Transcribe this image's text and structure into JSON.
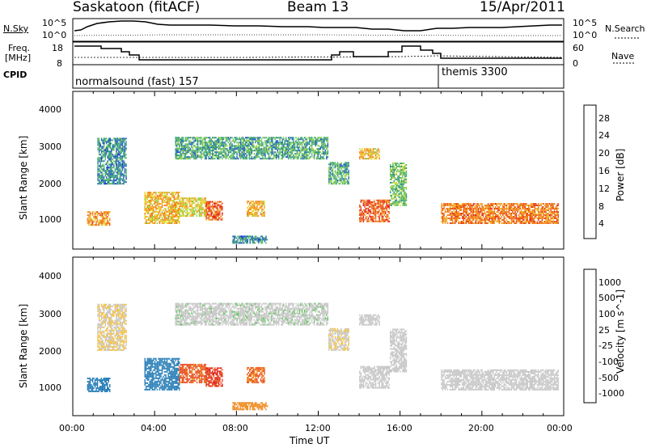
{
  "header": {
    "station": "Saskatoon (fitACF)",
    "beam": "Beam 13",
    "date": "15/Apr/2011"
  },
  "noise_panel": {
    "left_label": "N.Sky",
    "right_label": "N.Search",
    "left_ticks": [
      "10^5",
      "10^0"
    ],
    "right_ticks": [
      "10^5",
      "10^0"
    ]
  },
  "freq_panel": {
    "left_label_1": "Freq.",
    "left_label_2": "[MHz]",
    "left_ticks": [
      "18",
      "8"
    ],
    "right_label": "Nave",
    "right_ticks": [
      "60",
      "0"
    ]
  },
  "cpid": {
    "label": "CPID",
    "segments": [
      {
        "name": "normalsound (fast) 157",
        "start_hour": 0
      },
      {
        "name": "themis 3300",
        "start_hour": 18
      }
    ]
  },
  "x_axis": {
    "title": "Time UT",
    "ticks": [
      "00:00",
      "04:00",
      "08:00",
      "12:00",
      "16:00",
      "20:00",
      "00:00"
    ]
  },
  "power_panel": {
    "ylabel": "Slant Range [km]",
    "yticks": [
      "4000",
      "3000",
      "2000",
      "1000"
    ],
    "colorbar_label": "Power [dB]",
    "colorbar_ticks": [
      "28",
      "24",
      "20",
      "16",
      "12",
      "8",
      "4"
    ],
    "colorbar_colors": [
      "#0a10e0",
      "#1f55c8",
      "#2e8f86",
      "#54b868",
      "#8fd24a",
      "#e5d733",
      "#f5a623",
      "#f07a1a",
      "#e8441a",
      "#e01414"
    ]
  },
  "velocity_panel": {
    "ylabel": "Slant Range [km]",
    "yticks": [
      "4000",
      "3000",
      "2000",
      "1000"
    ],
    "colorbar_label": "Velocity [m s^-1]",
    "colorbar_ticks": [
      "1000",
      "500",
      "100",
      "25",
      "-25",
      "-100",
      "-500",
      "-1000"
    ],
    "colorbar_colors": [
      "#2048c8",
      "#2a7fb8",
      "#3a9a8a",
      "#5fc85a",
      "#c8c8c8",
      "#f5c040",
      "#f08a20",
      "#e85020",
      "#e01010"
    ]
  },
  "chart_data": {
    "type": "heatmap",
    "title": "Saskatoon (fitACF) Beam 13 15/Apr/2011",
    "xlabel": "Time UT",
    "ylabel": "Slant Range [km]",
    "xlim_hours": [
      0,
      24
    ],
    "ylim_km": [
      200,
      4600
    ],
    "power_clim_db": [
      0,
      32
    ],
    "velocity_clim_ms": [
      -1000,
      1000
    ],
    "echo_regions": [
      {
        "t0": 0.7,
        "t1": 1.8,
        "r0": 850,
        "r1": 1250,
        "power": 22,
        "velocity": 200
      },
      {
        "t0": 1.2,
        "t1": 2.6,
        "r0": 2000,
        "r1": 3300,
        "power": 8,
        "velocity": -25
      },
      {
        "t0": 3.5,
        "t1": 5.2,
        "r0": 900,
        "r1": 1800,
        "power": 20,
        "velocity": 250
      },
      {
        "t0": 5.2,
        "t1": 6.5,
        "r0": 1100,
        "r1": 1600,
        "power": 18,
        "velocity": -600
      },
      {
        "t0": 6.5,
        "t1": 7.3,
        "r0": 1000,
        "r1": 1500,
        "power": 26,
        "velocity": -900
      },
      {
        "t0": 8.5,
        "t1": 9.4,
        "r0": 1100,
        "r1": 1550,
        "power": 20,
        "velocity": -500
      },
      {
        "t0": 5.0,
        "t1": 12.5,
        "r0": 2700,
        "r1": 3300,
        "power": 10,
        "velocity": 10
      },
      {
        "t0": 12.5,
        "t1": 13.5,
        "r0": 2000,
        "r1": 2600,
        "power": 10,
        "velocity": -20
      },
      {
        "t0": 14.0,
        "t1": 15.0,
        "r0": 2700,
        "r1": 3000,
        "power": 20,
        "velocity": 0
      },
      {
        "t0": 14.0,
        "t1": 15.5,
        "r0": 950,
        "r1": 1550,
        "power": 26,
        "velocity": 0
      },
      {
        "t0": 15.5,
        "t1": 16.3,
        "r0": 1400,
        "r1": 2600,
        "power": 12,
        "velocity": 0
      },
      {
        "t0": 18.0,
        "t1": 23.7,
        "r0": 900,
        "r1": 1450,
        "power": 24,
        "velocity": 0
      },
      {
        "t0": 7.8,
        "t1": 9.5,
        "r0": 350,
        "r1": 550,
        "power": 8,
        "velocity": -150
      }
    ]
  }
}
